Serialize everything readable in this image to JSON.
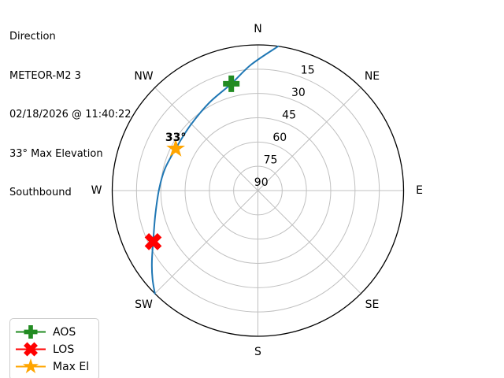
{
  "header": {
    "lines": [
      "Direction",
      "METEOR-M2 3",
      "02/18/2026 @ 11:40:22",
      "33° Max Elevation",
      "Southbound"
    ]
  },
  "chart_data": {
    "type": "polar_sky_track",
    "title": "Direction",
    "satellite": "METEOR-M2 3",
    "pass_time": "02/18/2026 @ 11:40:22",
    "max_elevation_deg": 33,
    "heading": "Southbound",
    "compass_labels": [
      "N",
      "NE",
      "E",
      "SE",
      "S",
      "SW",
      "W",
      "NW"
    ],
    "elevation_rings_deg": [
      15,
      30,
      45,
      60,
      75,
      90
    ],
    "ring_label_azimuth_deg": 22.5,
    "grid": true,
    "colors": {
      "track": "#1f77b4",
      "aos": "#228b22",
      "los": "#ff0000",
      "max_el": "#ffa500",
      "grid": "#c0c0c0",
      "outline": "#000000"
    },
    "track_points_az_el": [
      [
        8,
        0
      ],
      [
        357,
        12
      ],
      [
        346,
        22
      ],
      [
        331,
        28
      ],
      [
        314,
        32
      ],
      [
        297,
        33
      ],
      [
        283,
        31
      ],
      [
        271,
        29
      ],
      [
        257,
        25
      ],
      [
        244,
        18
      ],
      [
        236,
        11
      ],
      [
        230,
        5
      ],
      [
        225,
        0
      ]
    ],
    "markers": [
      {
        "id": "aos",
        "label": "AOS",
        "shape": "plus",
        "color": "#228b22",
        "azimuth_deg": 346,
        "elevation_deg": 22
      },
      {
        "id": "los",
        "label": "LOS",
        "shape": "x",
        "color": "#ff0000",
        "azimuth_deg": 244,
        "elevation_deg": 18
      },
      {
        "id": "max-el",
        "label": "Max El",
        "shape": "star",
        "color": "#ffa500",
        "azimuth_deg": 297,
        "elevation_deg": 33,
        "annotation": "33°"
      }
    ]
  },
  "legend": {
    "items": [
      {
        "label": "AOS",
        "shape": "plus",
        "color": "#228b22"
      },
      {
        "label": "LOS",
        "shape": "x",
        "color": "#ff0000"
      },
      {
        "label": "Max El",
        "shape": "star",
        "color": "#ffa500"
      }
    ]
  }
}
